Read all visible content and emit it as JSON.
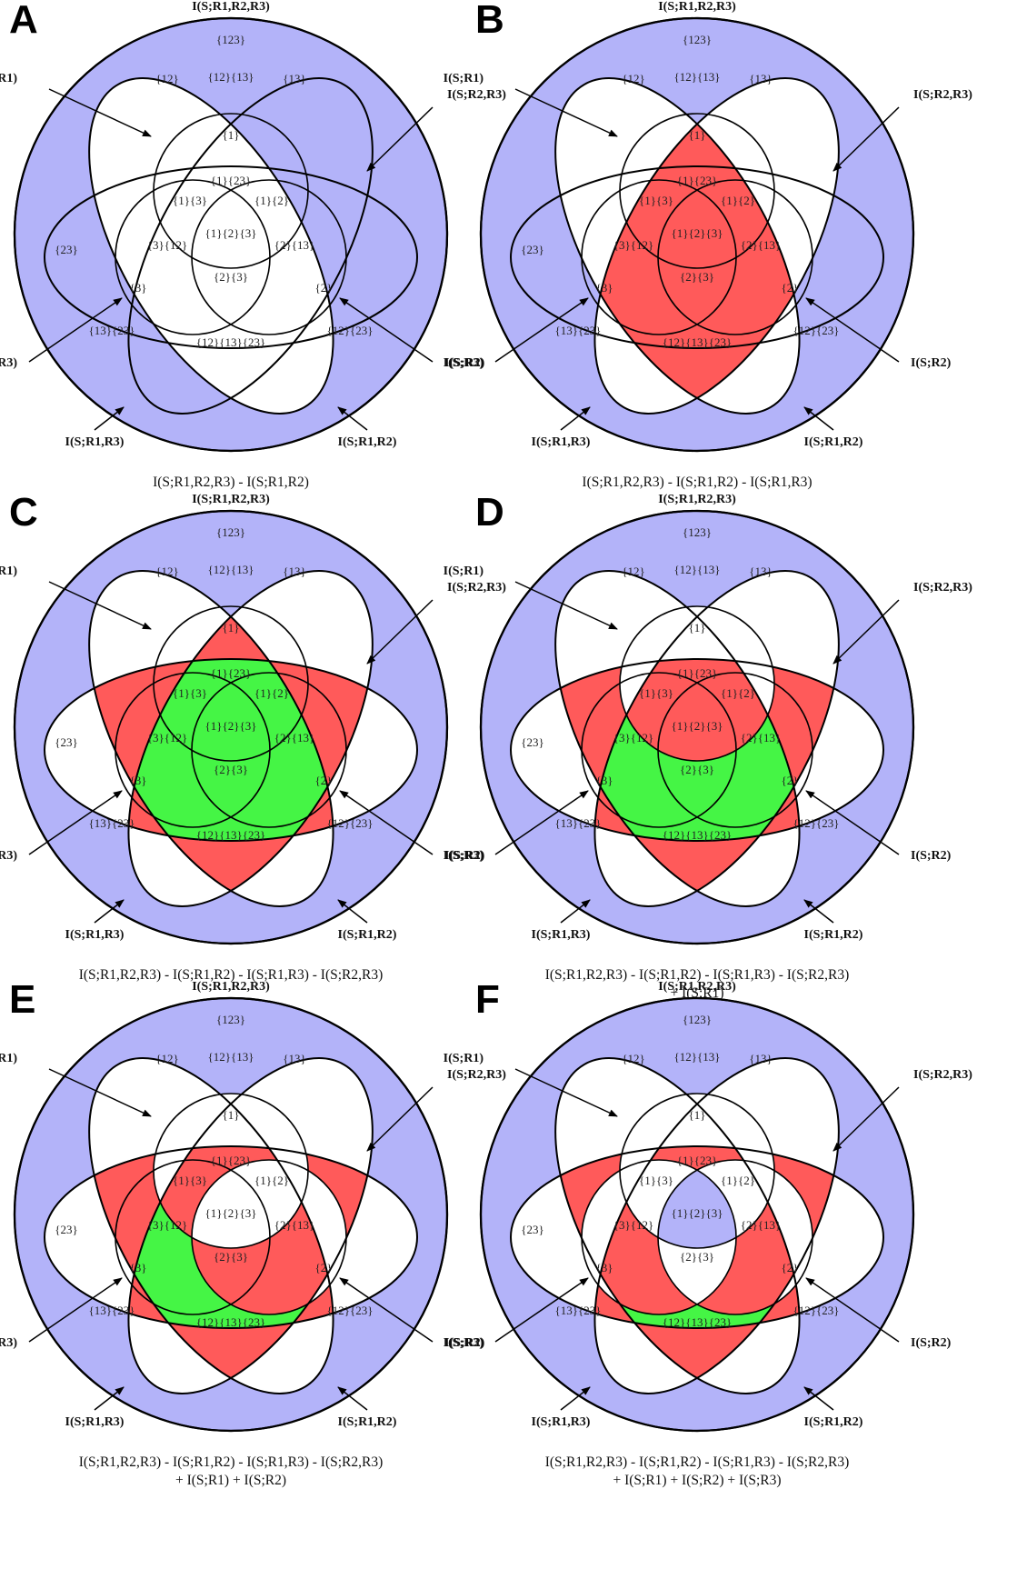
{
  "colors": {
    "blue": "#b3b3f9",
    "red": "#ff5a5a",
    "green": "#45f545",
    "white": "#ffffff",
    "stroke": "#000000"
  },
  "labels": {
    "full": "I(S;R1,R2,R3)",
    "r1": "I(S;R1)",
    "r2": "I(S;R2)",
    "r3": "I(S;R3)",
    "r12": "I(S;R1,R2)",
    "r13": "I(S;R1,R3)",
    "r23": "I(S;R2,R3)"
  },
  "atoms": {
    "a123": "{123}",
    "a12": "{12}",
    "a13": "{13}",
    "a23": "{23}",
    "a12_13": "{12}{13}",
    "a1": "{1}",
    "a1_23": "{1}{23}",
    "a1_3": "{1}{3}",
    "a1_2": "{1}{2}",
    "a1_2_3": "{1}{2}{3}",
    "a3_12": "{3}{12}",
    "a2_13": "{2}{13}",
    "a2_3": "{2}{3}",
    "a3": "{3}",
    "a2": "{2}",
    "a13_23": "{13}{23}",
    "a12_23": "{12}{23}",
    "a12_13_23": "{12}{13}{23}"
  },
  "panels": [
    {
      "letter": "A",
      "formula": [
        "I(S;R1,R2,R3) - I(S;R1,R2)"
      ]
    },
    {
      "letter": "B",
      "formula": [
        "I(S;R1,R2,R3) - I(S;R1,R2) - I(S;R1,R3)"
      ]
    },
    {
      "letter": "C",
      "formula": [
        "I(S;R1,R2,R3) - I(S;R1,R2) - I(S;R1,R3) - I(S;R2,R3)"
      ]
    },
    {
      "letter": "D",
      "formula": [
        "I(S;R1,R2,R3) - I(S;R1,R2) - I(S;R1,R3) - I(S;R2,R3)",
        "+ I(S;R1)"
      ]
    },
    {
      "letter": "E",
      "formula": [
        "I(S;R1,R2,R3) - I(S;R1,R2) - I(S;R1,R3) - I(S;R2,R3)",
        "+ I(S;R1) + I(S;R2)"
      ]
    },
    {
      "letter": "F",
      "formula": [
        "I(S;R1,R2,R3) - I(S;R1,R2) - I(S;R1,R3) - I(S;R2,R3)",
        "+ I(S;R1) + I(S;R2) + I(S;R3)"
      ]
    }
  ]
}
